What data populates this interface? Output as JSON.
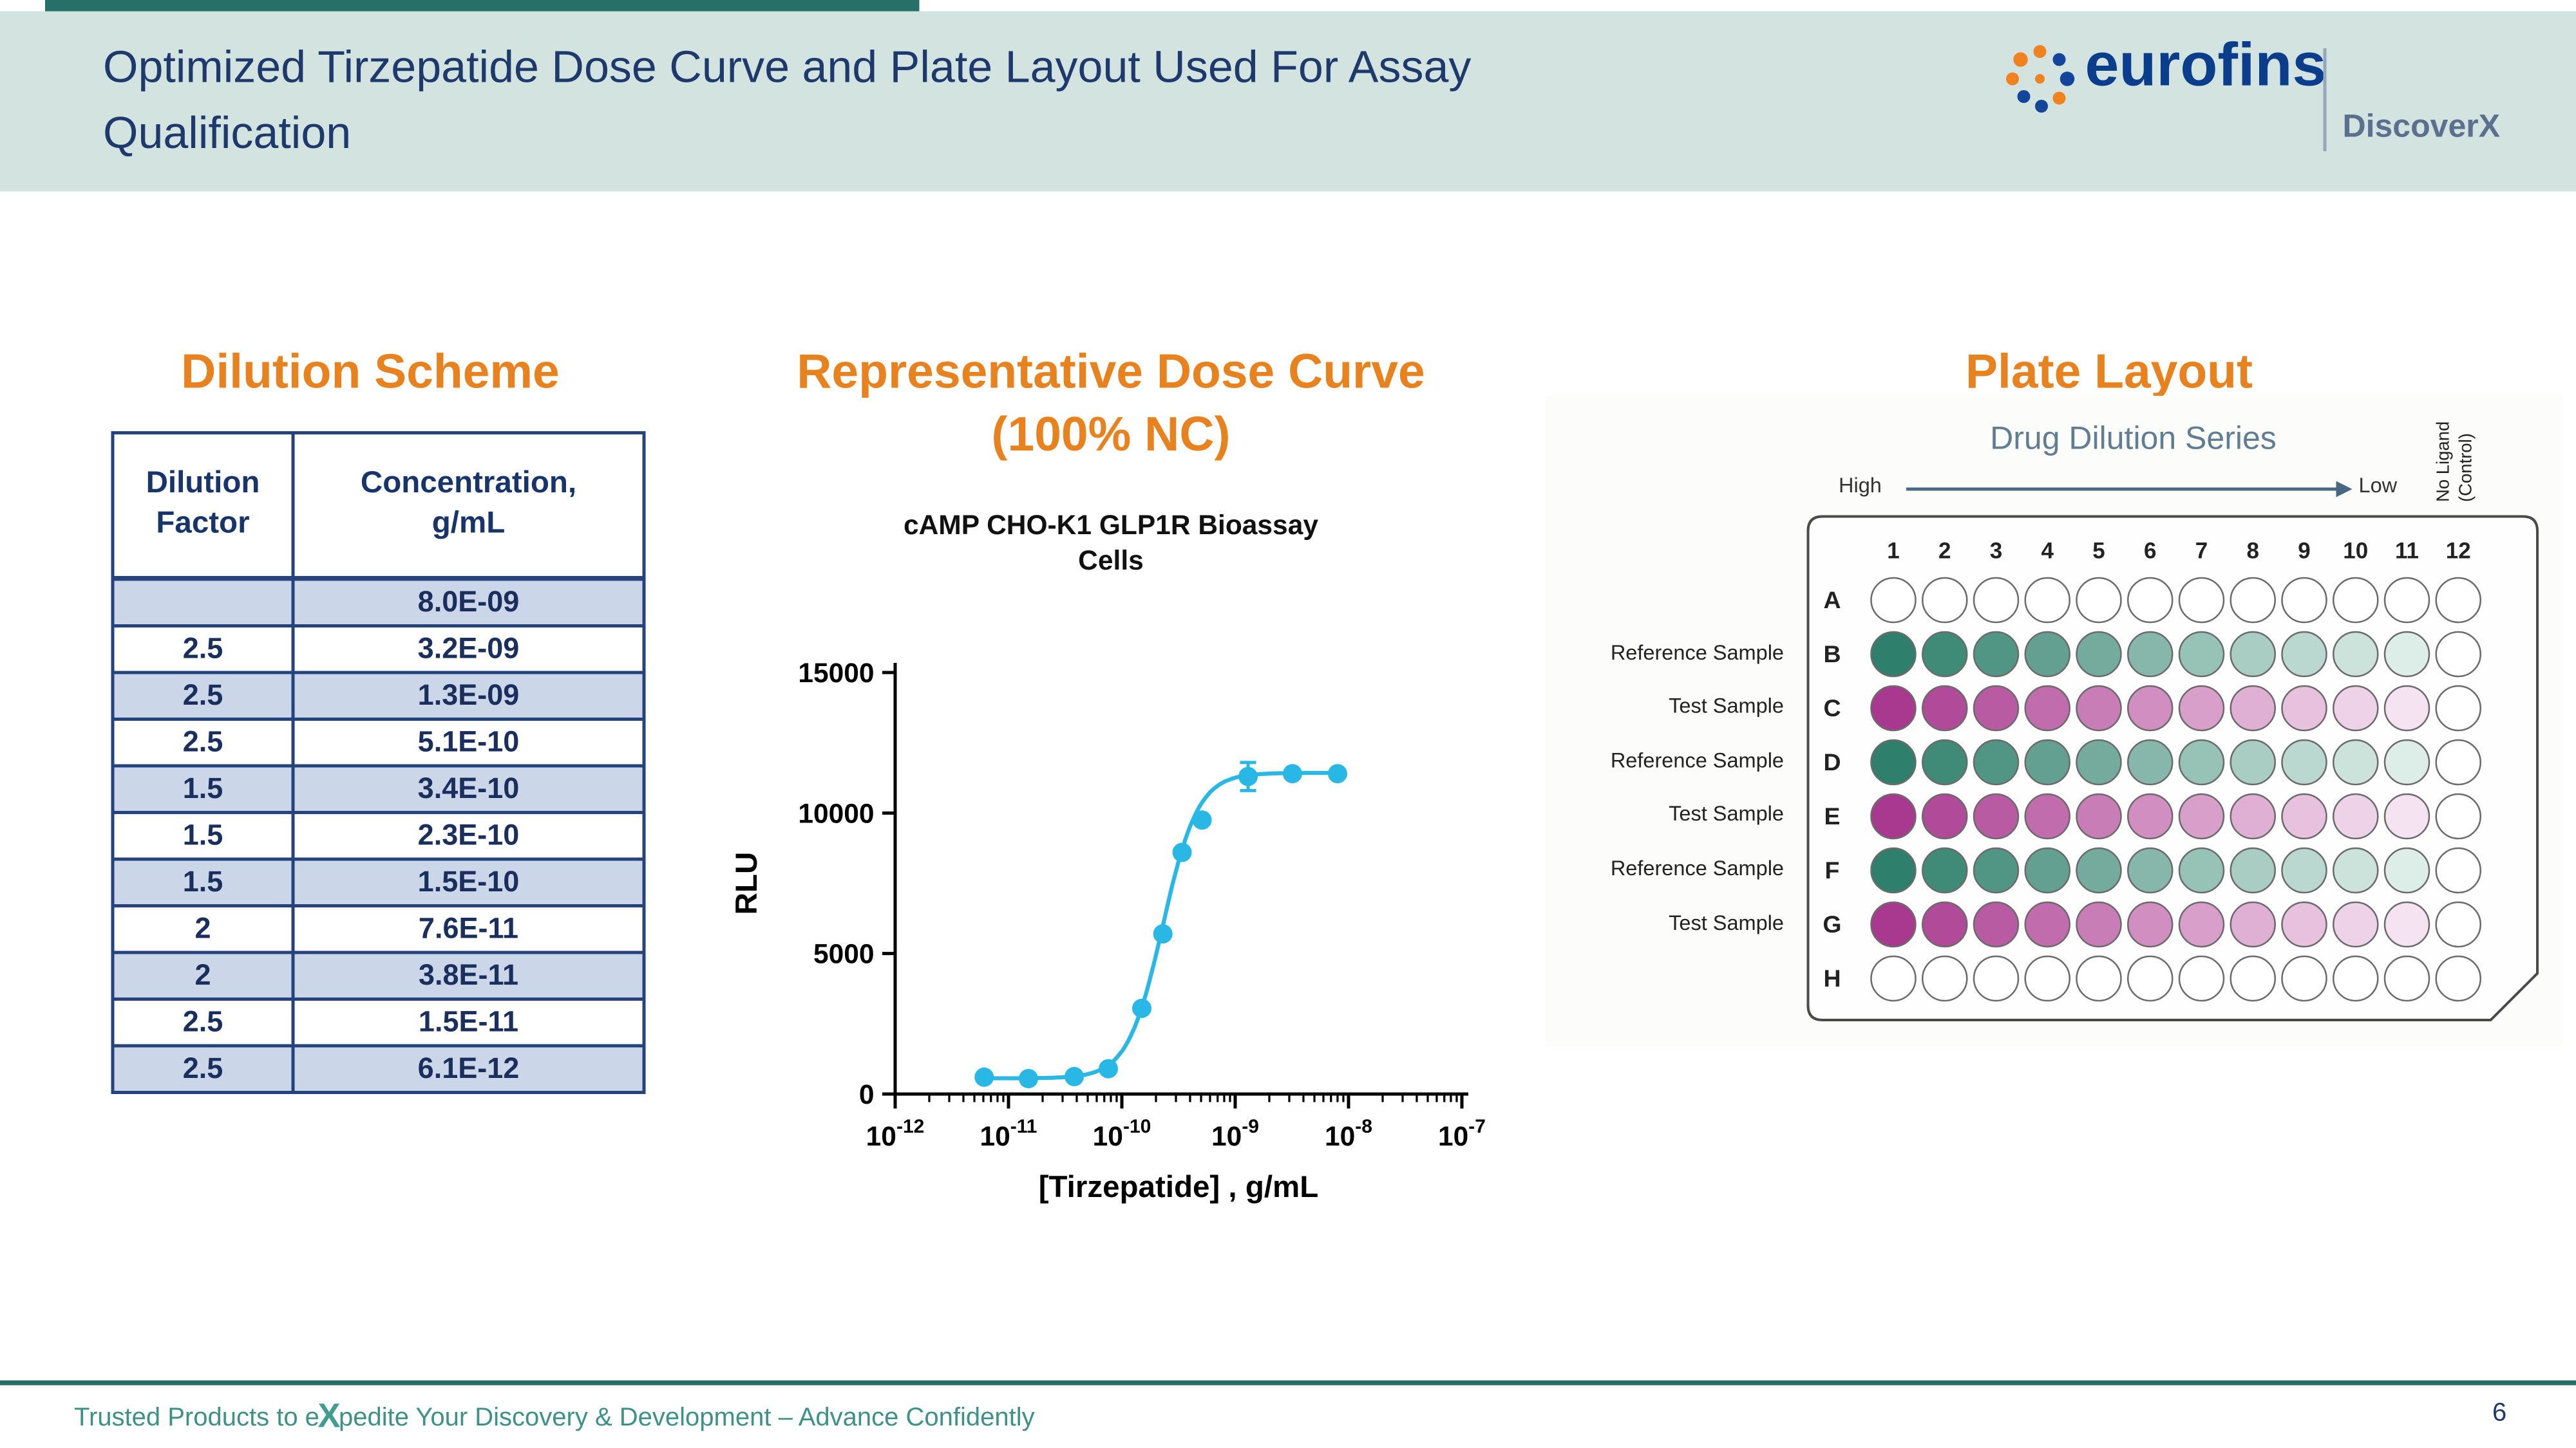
{
  "header": {
    "title_lines": [
      "Optimized Tirzepatide Dose Curve and Plate Layout Used For Assay",
      "Qualification"
    ],
    "brand": "eurofins",
    "sub_brand": "DiscoverX"
  },
  "dilution": {
    "heading": "Dilution Scheme",
    "columns": [
      "Dilution Factor",
      "Concentration, g/mL"
    ],
    "rows": [
      [
        "",
        "8.0E-09"
      ],
      [
        "2.5",
        "3.2E-09"
      ],
      [
        "2.5",
        "1.3E-09"
      ],
      [
        "2.5",
        "5.1E-10"
      ],
      [
        "1.5",
        "3.4E-10"
      ],
      [
        "1.5",
        "2.3E-10"
      ],
      [
        "1.5",
        "1.5E-10"
      ],
      [
        "2",
        "7.6E-11"
      ],
      [
        "2",
        "3.8E-11"
      ],
      [
        "2.5",
        "1.5E-11"
      ],
      [
        "2.5",
        "6.1E-12"
      ]
    ]
  },
  "curve_section": {
    "heading_line1": "Representative Dose Curve",
    "heading_line2": "(100% NC)"
  },
  "chart_data": {
    "type": "scatter",
    "title": "cAMP CHO-K1 GLP1R Bioassay Cells",
    "title_lines": [
      "cAMP CHO-K1 GLP1R Bioassay",
      "Cells"
    ],
    "xlabel": "[Tirzepatide] , g/mL",
    "ylabel": "RLU",
    "x_scale": "log",
    "xlim": [
      1e-12,
      1e-07
    ],
    "ylim": [
      0,
      15000
    ],
    "y_ticks": [
      0,
      5000,
      10000,
      15000
    ],
    "x_tick_exponents": [
      -12,
      -11,
      -10,
      -9,
      -8,
      -7
    ],
    "grid": false,
    "legend": "none",
    "series": [
      {
        "name": "Tirzepatide",
        "color": "#29b8e5",
        "x": [
          6.1e-12,
          1.5e-11,
          3.8e-11,
          7.6e-11,
          1.5e-10,
          2.3e-10,
          3.4e-10,
          5.1e-10,
          1.3e-09,
          3.2e-09,
          8e-09
        ],
        "y": [
          600,
          550,
          620,
          900,
          3050,
          5700,
          8600,
          9750,
          11300,
          11400,
          11400
        ],
        "y_err": [
          0,
          0,
          0,
          0,
          0,
          0,
          0,
          0,
          500,
          0,
          0
        ]
      }
    ],
    "fit": {
      "bottom": 560,
      "top": 11430,
      "ec50": 2.3e-10,
      "hill": 2.8
    }
  },
  "plate": {
    "heading": "Plate Layout",
    "series_label": "Drug Dilution Series",
    "high_label": "High",
    "low_label": "Low",
    "no_ligand_lines": [
      "No Ligand",
      "(Control)"
    ],
    "column_numbers": [
      "1",
      "2",
      "3",
      "4",
      "5",
      "6",
      "7",
      "8",
      "9",
      "10",
      "11",
      "12"
    ],
    "rows": [
      {
        "letter": "A",
        "type": "empty",
        "label": ""
      },
      {
        "letter": "B",
        "type": "green",
        "label": "Reference Sample"
      },
      {
        "letter": "C",
        "type": "magenta",
        "label": "Test Sample"
      },
      {
        "letter": "D",
        "type": "green",
        "label": "Reference Sample"
      },
      {
        "letter": "E",
        "type": "magenta",
        "label": "Test Sample"
      },
      {
        "letter": "F",
        "type": "green",
        "label": "Reference Sample"
      },
      {
        "letter": "G",
        "type": "magenta",
        "label": "Test Sample"
      },
      {
        "letter": "H",
        "type": "empty",
        "label": ""
      }
    ],
    "colors": {
      "green_start": "#2e7f6b",
      "green_end": "#ddeee8",
      "magenta_start": "#a9398f",
      "magenta_end": "#f6e3f2",
      "empty": "#ffffff"
    },
    "gradient_columns": 11
  },
  "footer": {
    "tagline_pre": "Trusted Products to e",
    "tagline_x": "X",
    "tagline_post": "pedite Your Discovery & Development – Advance Confidently",
    "page_number": "6"
  },
  "colors": {
    "header_bg": "#d3e3df",
    "accent_teal": "#27706a",
    "title_navy": "#1e3a6d",
    "heading_orange": "#e8821e",
    "table_border": "#24427c",
    "table_shade": "#ccd6e9",
    "curve_cyan": "#29b8e5",
    "footer_teal": "#3d9187",
    "brand_blue": "#0a3e8c",
    "brand_orange": "#f08220",
    "discoverx_gray": "#5b708f"
  }
}
